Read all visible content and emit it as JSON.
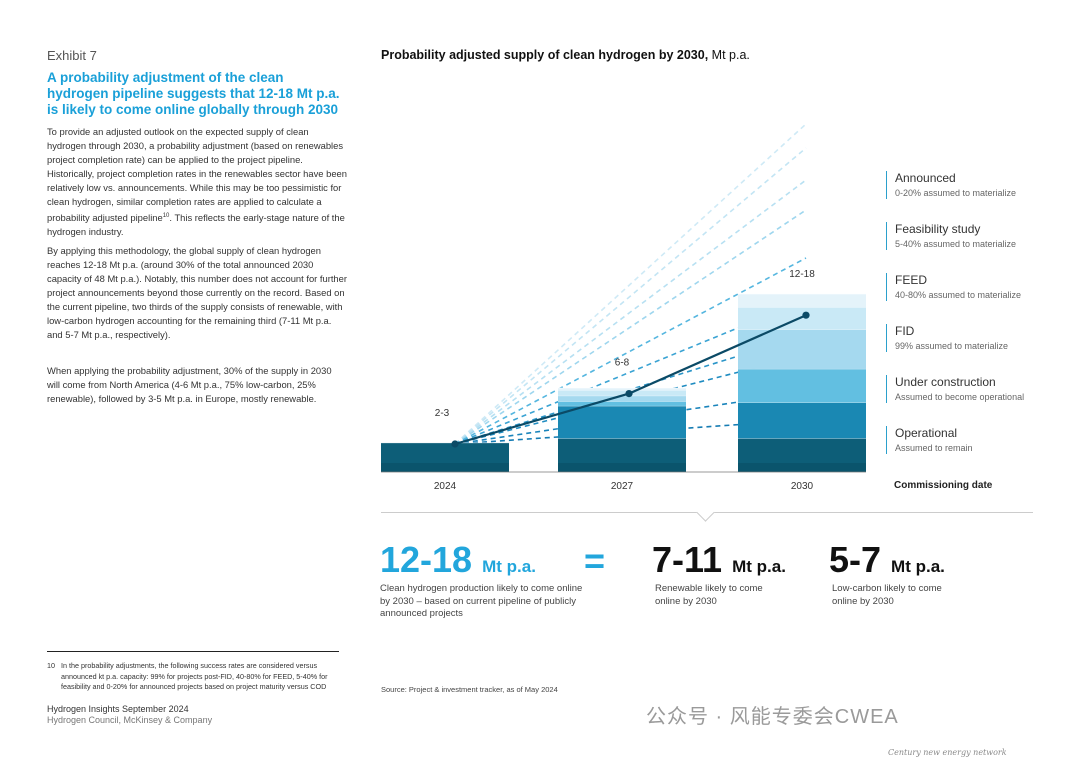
{
  "left": {
    "exhibit_label": "Exhibit 7",
    "title": "A probability adjustment of the clean hydrogen pipeline suggests that 12-18 Mt p.a. is likely to come online globally through 2030",
    "para1": "To provide an adjusted outlook on the expected supply of clean hydrogen through 2030, a probability adjustment (based on renewables project completion rate) can be applied to the project pipeline. Historically, project completion rates in the renewables sector have been relatively low vs. announcements. While this may be too pessimistic for clean hydrogen, similar completion rates are applied to calculate a probability adjusted pipeline",
    "para1_sup": "10",
    "para1_tail": ". This reflects the early-stage nature of the hydrogen industry.",
    "para2": "By applying this methodology, the global supply of clean hydrogen reaches 12-18 Mt p.a. (around 30% of the total announced 2030 capacity of 48 Mt p.a.). Notably, this number does not account for further project announcements beyond those currently on the record. Based on the current pipeline, two thirds of the supply consists of renewable, with low-carbon hydrogen accounting for the remaining third (7-11 Mt p.a. and 5-7 Mt p.a., respectively).",
    "para3": "When applying the probability adjustment, 30% of the supply in 2030 will come from North America (4-6 Mt p.a., 75% low-carbon, 25% renewable), followed by 3-5 Mt p.a. in Europe, mostly renewable.",
    "footnote_num": "10",
    "footnote_text": "In the probability adjustments, the following success rates are considered versus announced kt p.a. capacity: 99% for projects post-FID, 40-80% for FEED, 5-40% for feasibility and 0-20% for announced projects based on project maturity versus COD",
    "publication": "Hydrogen Insights September 2024",
    "publisher": "Hydrogen Council, McKinsey & Company"
  },
  "chart_title": "Probability adjusted supply of clean hydrogen by 2030,",
  "chart_title_unit": "Mt p.a.",
  "chart_data": {
    "type": "bar",
    "categories": [
      "2024",
      "2027",
      "2030"
    ],
    "xlabel": "Commissioning date",
    "stack_order": [
      "Operational",
      "Under construction",
      "FID",
      "FEED",
      "Feasibility study",
      "Announced"
    ],
    "segments": {
      "2024": [
        2.6,
        0.0,
        0.0,
        0.0,
        0.0,
        0.0
      ],
      "2027": [
        3.0,
        2.9,
        0.4,
        0.5,
        0.5,
        0.2
      ],
      "2030": [
        3.0,
        3.2,
        3.0,
        3.5,
        2.0,
        1.2
      ]
    },
    "range_labels": [
      "2-3",
      "6-8",
      "12-18"
    ],
    "trend_line_values": [
      2.5,
      7.0,
      14.0
    ],
    "colors": [
      "#0d5e78",
      "#1a88b3",
      "#62bfe1",
      "#a5d9ef",
      "#c9e9f6",
      "#e4f3fa"
    ]
  },
  "legend": [
    {
      "title": "Announced",
      "desc": "0-20% assumed to materialize"
    },
    {
      "title": "Feasibility study",
      "desc": "5-40% assumed to materialize"
    },
    {
      "title": "FEED",
      "desc": "40-80% assumed to materialize"
    },
    {
      "title": "FID",
      "desc": "99% assumed to materialize"
    },
    {
      "title": "Under construction",
      "desc": "Assumed to become operational"
    },
    {
      "title": "Operational",
      "desc": "Assumed to remain"
    }
  ],
  "summary": {
    "total_value": "12-18",
    "total_unit": "Mt p.a.",
    "total_caption": "Clean hydrogen production likely to come online by 2030 – based on current pipeline of publicly announced projects",
    "equals": "=",
    "renewable_value": "7-11",
    "renewable_unit": "Mt p.a.",
    "renewable_caption": "Renewable likely to come online by 2030",
    "lowcarbon_value": "5-7",
    "lowcarbon_unit": "Mt p.a.",
    "lowcarbon_caption": "Low-carbon likely to come online by 2030"
  },
  "source": "Source: Project & investment tracker, as of May 2024",
  "watermark": "公众号 · 风能专委会CWEA",
  "watermark_en": "Century new energy network"
}
